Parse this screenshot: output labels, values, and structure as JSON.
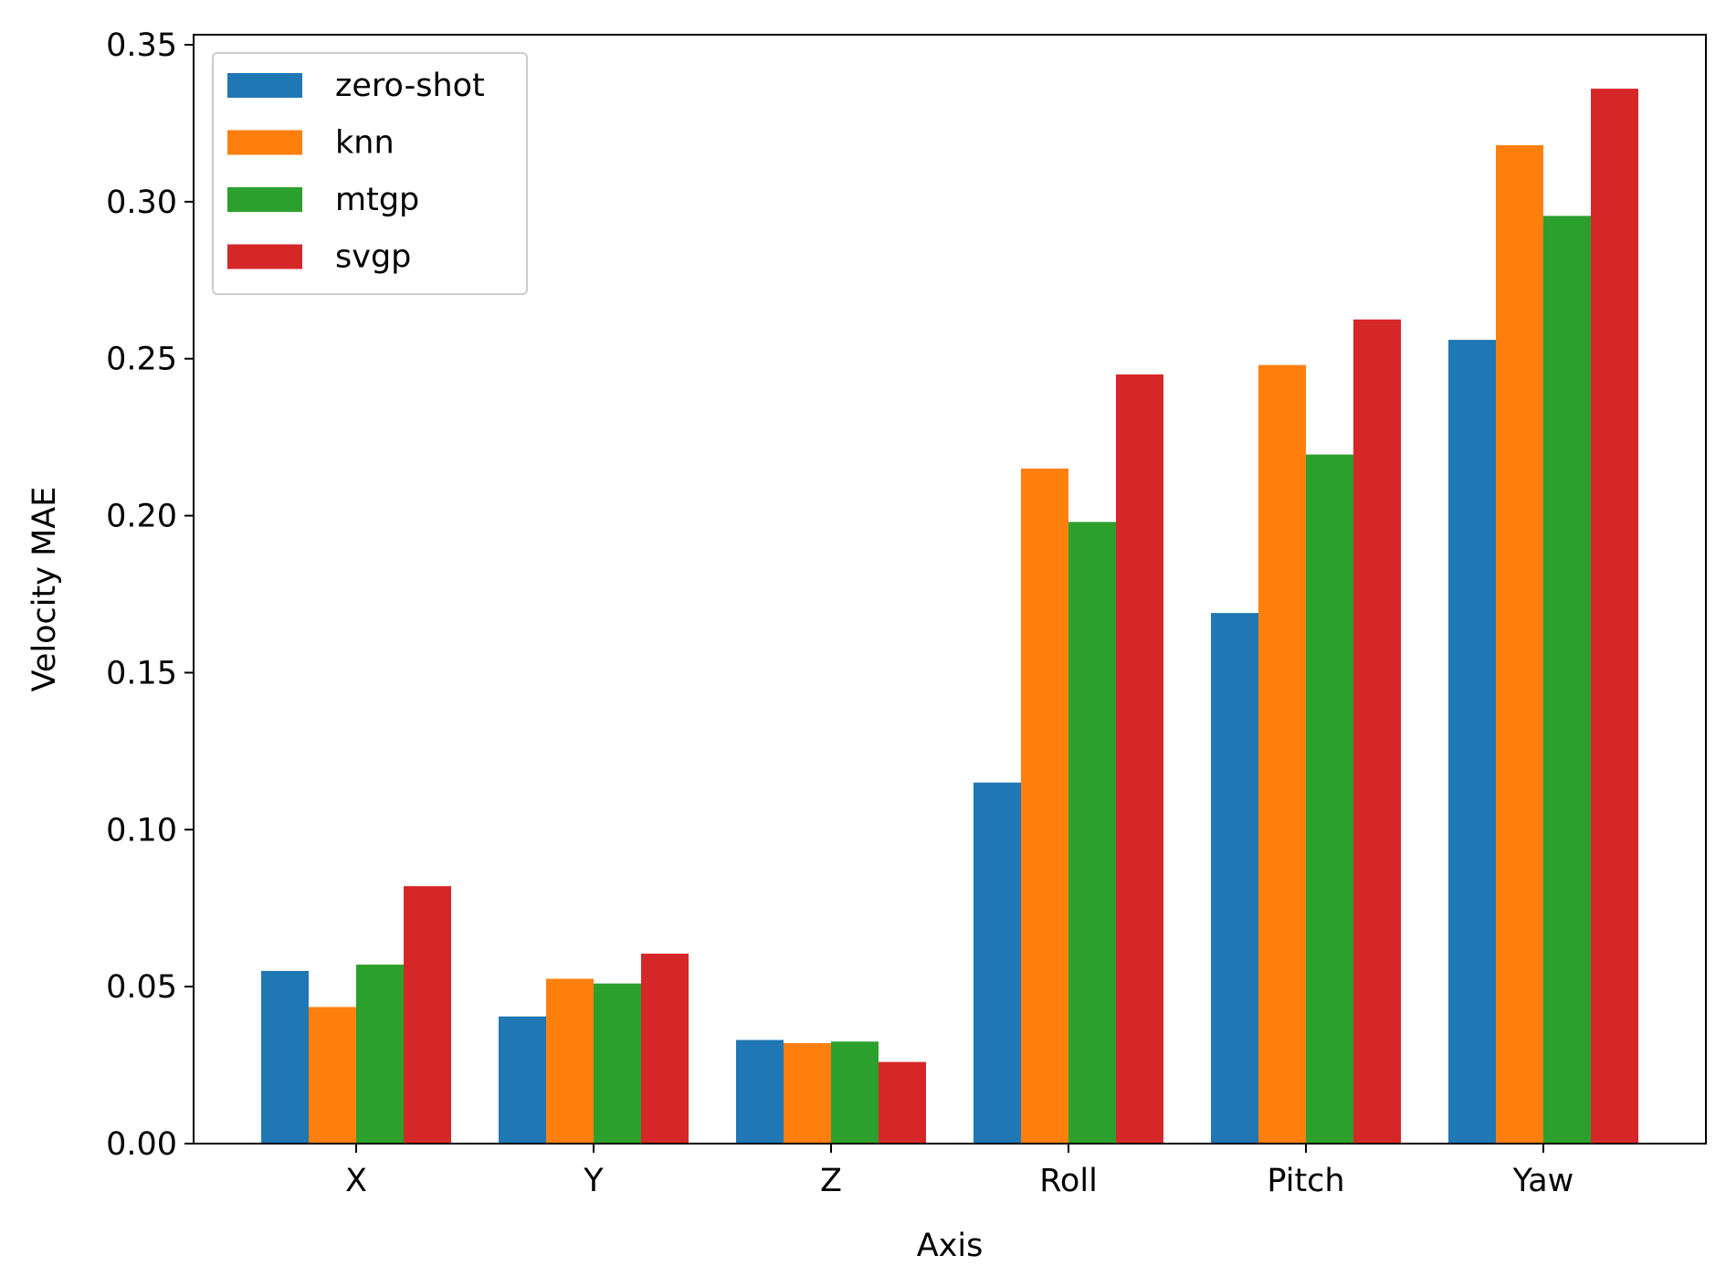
{
  "chart_data": {
    "type": "bar",
    "title": "",
    "xlabel": "Axis",
    "ylabel": "Velocity MAE",
    "ylim": [
      0,
      0.35
    ],
    "yticks": [
      "0.00",
      "0.05",
      "0.10",
      "0.15",
      "0.20",
      "0.25",
      "0.30",
      "0.35"
    ],
    "grid": false,
    "legend_position": "top-left",
    "categories": [
      "X",
      "Y",
      "Z",
      "Roll",
      "Pitch",
      "Yaw"
    ],
    "series": [
      {
        "name": "zero-shot",
        "color": "#1f77b4",
        "values": [
          0.055,
          0.0405,
          0.033,
          0.115,
          0.169,
          0.256
        ]
      },
      {
        "name": "knn",
        "color": "#ff7f0e",
        "values": [
          0.0435,
          0.0525,
          0.032,
          0.215,
          0.248,
          0.318
        ]
      },
      {
        "name": "mtgp",
        "color": "#2ca02c",
        "values": [
          0.057,
          0.051,
          0.0325,
          0.198,
          0.2195,
          0.2955
        ]
      },
      {
        "name": "svgp",
        "color": "#d62728",
        "values": [
          0.082,
          0.0605,
          0.026,
          0.245,
          0.2625,
          0.336
        ]
      }
    ]
  }
}
